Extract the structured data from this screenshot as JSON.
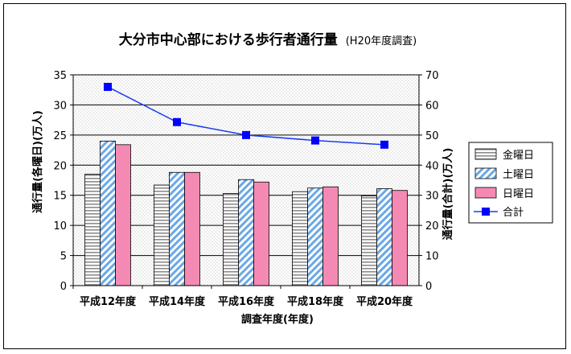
{
  "chart_data": {
    "type": "bar+line",
    "title": "大分市中心部における歩行者通行量",
    "subtitle": "(H20年度調査)",
    "xlabel": "調査年度(年度)",
    "ylabel_left": "通行量(各曜日)(万人)",
    "ylabel_right": "通行量(合計)(万人)",
    "categories": [
      "平成12年度",
      "平成14年度",
      "平成16年度",
      "平成18年度",
      "平成20年度"
    ],
    "y_left": {
      "min": 0,
      "max": 35,
      "step": 5,
      "ticks": [
        "0",
        "5",
        "10",
        "15",
        "20",
        "25",
        "30",
        "35"
      ]
    },
    "y_right": {
      "min": 0,
      "max": 70,
      "step": 10,
      "ticks": [
        "0",
        "10",
        "20",
        "30",
        "40",
        "50",
        "60",
        "70"
      ]
    },
    "series": [
      {
        "name": "金曜日",
        "axis": "left",
        "type": "bar",
        "pattern": "horizontal-stripes",
        "values": [
          18.5,
          16.7,
          15.3,
          15.6,
          14.9
        ]
      },
      {
        "name": "土曜日",
        "axis": "left",
        "type": "bar",
        "pattern": "diagonal-stripes",
        "values": [
          24.0,
          18.8,
          17.6,
          16.2,
          16.1
        ]
      },
      {
        "name": "日曜日",
        "axis": "left",
        "type": "bar",
        "pattern": "solid-pink",
        "values": [
          23.4,
          18.8,
          17.2,
          16.4,
          15.8
        ]
      },
      {
        "name": "合計",
        "axis": "right",
        "type": "line",
        "marker": "square",
        "values": [
          66.0,
          54.3,
          50.0,
          48.2,
          46.8
        ]
      }
    ],
    "legend_position": "right",
    "colors": {
      "line": "#1a3cf0",
      "marker": "#0000ff",
      "pink": "#f48ab4",
      "blue_stripe": "#6aa8e6",
      "gray_stripe": "#9a9a9a",
      "plot_bg": "#ffffff",
      "dots": "#c8c8c8"
    }
  }
}
